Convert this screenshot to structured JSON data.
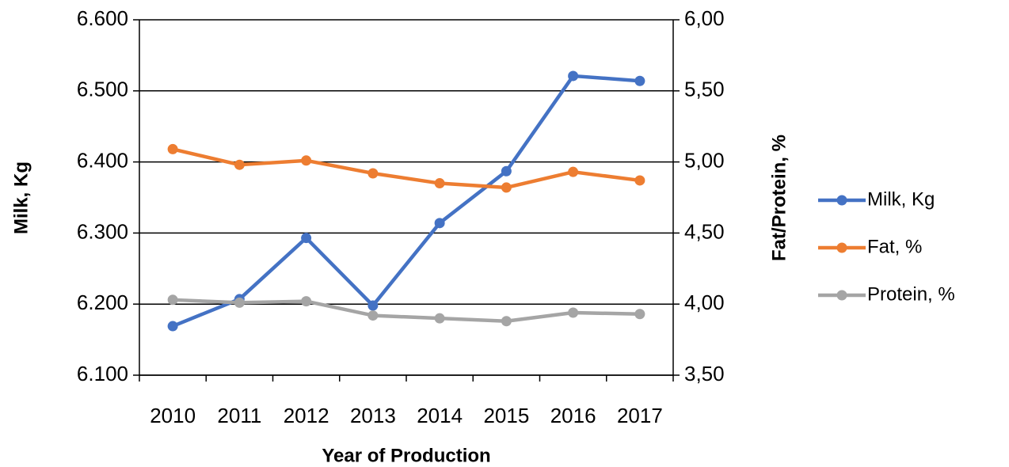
{
  "chart_data": {
    "type": "line",
    "x_label": "Year of Production",
    "y_label": "Milk, Kg",
    "y2_label": "Fat/Protein, %",
    "categories": [
      "2010",
      "2011",
      "2012",
      "2013",
      "2014",
      "2015",
      "2016",
      "2017"
    ],
    "series": [
      {
        "name": "Milk, Kg",
        "color": "#4472c4",
        "values": [
          6169,
          6207,
          6293,
          6198,
          6314,
          6387,
          6521,
          6514
        ]
      },
      {
        "name": "Fat, %",
        "color": "#ed7d31",
        "axis": "y2",
        "values": [
          5.09,
          4.98,
          5.01,
          4.92,
          4.85,
          4.82,
          4.93,
          4.87
        ]
      },
      {
        "name": "Protein, %",
        "color": "#a5a5a5",
        "axis": "y2",
        "values": [
          4.03,
          4.01,
          4.02,
          3.92,
          3.9,
          3.88,
          3.94,
          3.93
        ]
      }
    ],
    "ylim": [
      6100,
      6600
    ],
    "yticks": [
      {
        "value": 6100,
        "label": "6.100"
      },
      {
        "value": 6200,
        "label": "6.200"
      },
      {
        "value": 6300,
        "label": "6.300"
      },
      {
        "value": 6400,
        "label": "6.400"
      },
      {
        "value": 6500,
        "label": "6.500"
      },
      {
        "value": 6600,
        "label": "6.600"
      }
    ],
    "y2lim": [
      3.5,
      6
    ],
    "y2ticks": [
      {
        "value": 3.5,
        "label": "3,50"
      },
      {
        "value": 4,
        "label": "4,00"
      },
      {
        "value": 4.5,
        "label": "4,50"
      },
      {
        "value": 5,
        "label": "5,00"
      },
      {
        "value": 5.5,
        "label": "5,50"
      },
      {
        "value": 6,
        "label": "6,00"
      }
    ],
    "grid": true,
    "legend": "right"
  }
}
